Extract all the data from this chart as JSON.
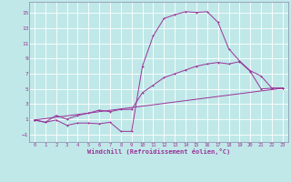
{
  "background_color": "#c0e8e8",
  "grid_color": "#ffffff",
  "line_color": "#993399",
  "spine_color": "#8888aa",
  "xlabel": "Windchill (Refroidissement éolien,°C)",
  "xlim": [
    -0.5,
    23.5
  ],
  "ylim": [
    -2.0,
    16.5
  ],
  "xticks": [
    0,
    1,
    2,
    3,
    4,
    5,
    6,
    7,
    8,
    9,
    10,
    11,
    12,
    13,
    14,
    15,
    16,
    17,
    18,
    19,
    20,
    21,
    22,
    23
  ],
  "yticks": [
    -1,
    1,
    3,
    5,
    7,
    9,
    11,
    13,
    15
  ],
  "line1_x": [
    0,
    1,
    2,
    3,
    4,
    5,
    6,
    7,
    8,
    9,
    10,
    11,
    12,
    13,
    14,
    15,
    16,
    17,
    18,
    19,
    20,
    21,
    22,
    23
  ],
  "line1_y": [
    0.9,
    0.6,
    0.9,
    0.2,
    0.5,
    0.5,
    0.4,
    0.6,
    -0.6,
    -0.6,
    8.0,
    12.0,
    14.3,
    14.8,
    15.2,
    15.1,
    15.2,
    13.8,
    10.3,
    8.7,
    7.4,
    6.7,
    5.1,
    5.1
  ],
  "line2_x": [
    0,
    1,
    2,
    3,
    4,
    5,
    6,
    7,
    8,
    9,
    10,
    11,
    12,
    13,
    14,
    15,
    16,
    17,
    18,
    19,
    20,
    21,
    22,
    23
  ],
  "line2_y": [
    0.9,
    0.6,
    1.5,
    1.0,
    1.5,
    1.8,
    2.2,
    2.0,
    2.3,
    2.3,
    4.5,
    5.5,
    6.5,
    7.0,
    7.5,
    8.0,
    8.3,
    8.5,
    8.3,
    8.6,
    7.3,
    5.0,
    5.1,
    5.1
  ],
  "line3_x": [
    0,
    23
  ],
  "line3_y": [
    0.9,
    5.1
  ],
  "marker_size": 1.5,
  "line_width": 0.7,
  "tick_fontsize": 4.0,
  "xlabel_fontsize": 5.0
}
